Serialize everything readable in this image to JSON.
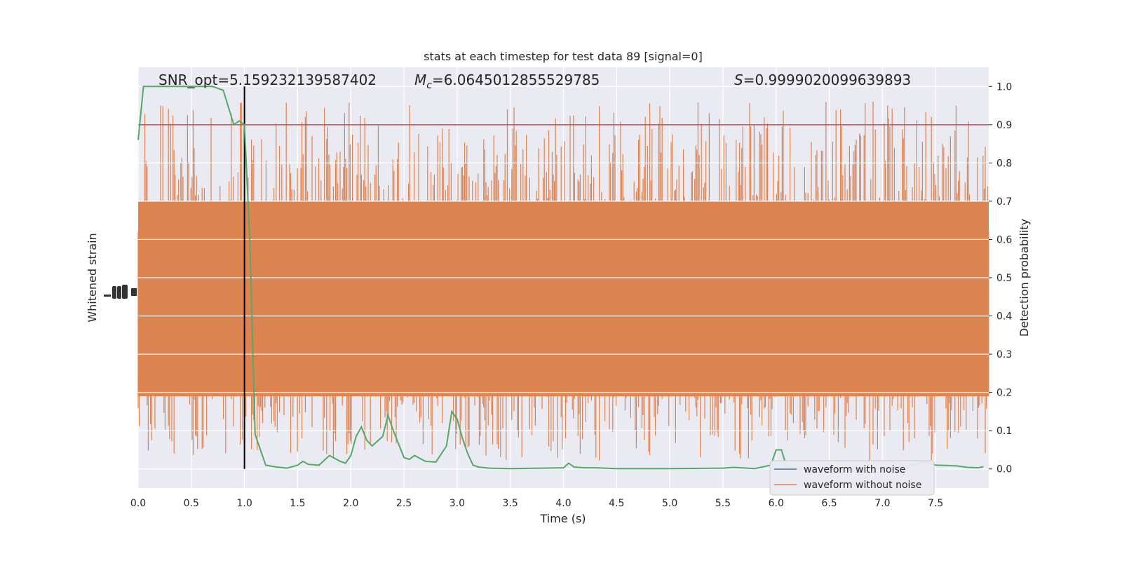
{
  "chart_data": {
    "type": "line",
    "title": "stats at each timestep for test data 89 [signal=0]",
    "xlabel": "Time (s)",
    "ylabel_left": "Whitened strain",
    "ylabel_right": "Detection probability",
    "xlim": [
      0,
      8
    ],
    "ylim_right": [
      -0.05,
      1.05
    ],
    "x_ticks": [
      "0.0",
      "0.5",
      "1.0",
      "1.5",
      "2.0",
      "2.5",
      "3.0",
      "3.5",
      "4.0",
      "4.5",
      "5.0",
      "5.5",
      "6.0",
      "6.5",
      "7.0",
      "7.5"
    ],
    "y_ticks_right": [
      "0.0",
      "0.1",
      "0.2",
      "0.3",
      "0.4",
      "0.5",
      "0.6",
      "0.7",
      "0.8",
      "0.9",
      "1.0"
    ],
    "stats": {
      "snr": "SNR_opt=5.159232139587402",
      "mc_value": "=6.0645012855529785",
      "s_value": "=0.9999020099639893"
    },
    "threshold": 0.9,
    "vline_x": 1.0,
    "legend": [
      {
        "label": "waveform with noise",
        "color": "#4c72b0"
      },
      {
        "label": "waveform without noise",
        "color": "#dd8452"
      }
    ],
    "legend_position": "bottom-right",
    "colors": {
      "background": "#eaeaf2",
      "grid": "#ffffff",
      "noise_band": "#dd8452",
      "probability": "#55a868",
      "threshold": "#c44e52",
      "vline": "#000000"
    },
    "series": [
      {
        "name": "probability",
        "x": [
          0.0,
          0.05,
          0.1,
          0.2,
          0.3,
          0.4,
          0.5,
          0.6,
          0.7,
          0.8,
          0.9,
          0.95,
          1.0,
          1.05,
          1.1,
          1.2,
          1.3,
          1.4,
          1.5,
          1.55,
          1.6,
          1.7,
          1.8,
          1.9,
          1.95,
          2.0,
          2.05,
          2.1,
          2.15,
          2.2,
          2.3,
          2.35,
          2.4,
          2.45,
          2.5,
          2.55,
          2.6,
          2.7,
          2.8,
          2.9,
          2.95,
          3.0,
          3.05,
          3.1,
          3.15,
          3.2,
          3.3,
          3.5,
          3.8,
          4.0,
          4.05,
          4.1,
          4.2,
          4.3,
          4.5,
          5.0,
          5.5,
          5.6,
          5.8,
          5.95,
          6.0,
          6.05,
          6.1,
          6.2,
          6.5,
          7.0,
          7.3,
          7.4,
          7.5,
          7.7,
          7.8,
          7.9,
          7.95
        ],
        "y": [
          0.86,
          1.0,
          1.0,
          1.0,
          1.0,
          1.0,
          1.0,
          1.0,
          1.0,
          0.99,
          0.9,
          0.91,
          0.9,
          0.6,
          0.09,
          0.01,
          0.005,
          0.002,
          0.01,
          0.02,
          0.012,
          0.01,
          0.035,
          0.02,
          0.015,
          0.035,
          0.085,
          0.11,
          0.075,
          0.06,
          0.085,
          0.14,
          0.1,
          0.065,
          0.03,
          0.025,
          0.035,
          0.02,
          0.018,
          0.06,
          0.15,
          0.13,
          0.08,
          0.04,
          0.01,
          0.005,
          0.002,
          0.001,
          0.002,
          0.003,
          0.015,
          0.005,
          0.003,
          0.003,
          0.001,
          0.001,
          0.002,
          0.004,
          0.001,
          0.01,
          0.05,
          0.05,
          0.005,
          0.002,
          0.001,
          0.002,
          0.01,
          0.02,
          0.01,
          0.008,
          0.004,
          0.003,
          0.006
        ]
      }
    ]
  }
}
